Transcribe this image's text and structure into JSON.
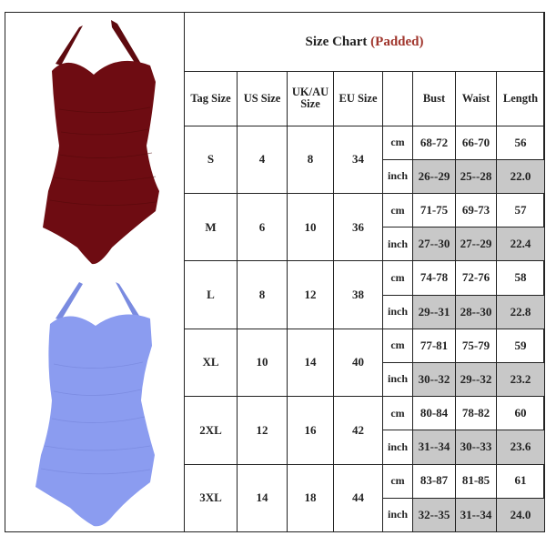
{
  "title": {
    "main": "Size Chart",
    "accent": "(Padded)",
    "accent_color": "#a0352c"
  },
  "headers": [
    "Tag Size",
    "US Size",
    "UK/AU Size",
    "EU Size",
    "",
    "Bust",
    "Waist",
    "Length"
  ],
  "products": [
    {
      "name": "swimsuit-burgundy",
      "color": "#6e0c12"
    },
    {
      "name": "swimsuit-periwinkle",
      "color": "#8b9cf0"
    }
  ],
  "rows": [
    {
      "tag": "S",
      "us": "4",
      "uk": "8",
      "eu": "34",
      "cm": {
        "unit": "cm",
        "bust": "68-72",
        "waist": "66-70",
        "length": "56"
      },
      "inch": {
        "unit": "inch",
        "bust": "26--29",
        "waist": "25--28",
        "length": "22.0"
      }
    },
    {
      "tag": "M",
      "us": "6",
      "uk": "10",
      "eu": "36",
      "cm": {
        "unit": "cm",
        "bust": "71-75",
        "waist": "69-73",
        "length": "57"
      },
      "inch": {
        "unit": "inch",
        "bust": "27--30",
        "waist": "27--29",
        "length": "22.4"
      }
    },
    {
      "tag": "L",
      "us": "8",
      "uk": "12",
      "eu": "38",
      "cm": {
        "unit": "cm",
        "bust": "74-78",
        "waist": "72-76",
        "length": "58"
      },
      "inch": {
        "unit": "inch",
        "bust": "29--31",
        "waist": "28--30",
        "length": "22.8"
      }
    },
    {
      "tag": "XL",
      "us": "10",
      "uk": "14",
      "eu": "40",
      "cm": {
        "unit": "cm",
        "bust": "77-81",
        "waist": "75-79",
        "length": "59"
      },
      "inch": {
        "unit": "inch",
        "bust": "30--32",
        "waist": "29--32",
        "length": "23.2"
      }
    },
    {
      "tag": "2XL",
      "us": "12",
      "uk": "16",
      "eu": "42",
      "cm": {
        "unit": "cm",
        "bust": "80-84",
        "waist": "78-82",
        "length": "60"
      },
      "inch": {
        "unit": "inch",
        "bust": "31--34",
        "waist": "30--33",
        "length": "23.6"
      }
    },
    {
      "tag": "3XL",
      "us": "14",
      "uk": "18",
      "eu": "44",
      "cm": {
        "unit": "cm",
        "bust": "83-87",
        "waist": "81-85",
        "length": "61"
      },
      "inch": {
        "unit": "inch",
        "bust": "32--35",
        "waist": "31--34",
        "length": "24.0"
      }
    }
  ]
}
